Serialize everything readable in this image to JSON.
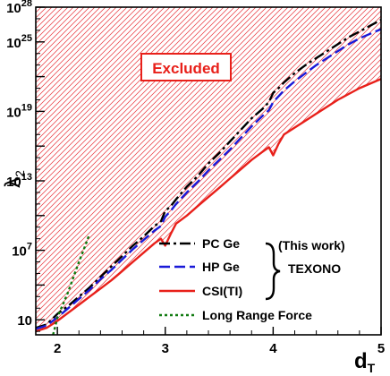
{
  "chart_data": {
    "type": "line",
    "title": "",
    "xlabel": "d",
    "xlabel_sub": "T",
    "ylabel": "λ",
    "ylabel_sub": "2",
    "xlim": [
      1.8,
      5.0
    ],
    "ylim_log10": [
      -0.3,
      28
    ],
    "y_scale": "log",
    "x_ticks": [
      {
        "value": 2,
        "label": "2"
      },
      {
        "value": 3,
        "label": "3"
      },
      {
        "value": 4,
        "label": "4"
      },
      {
        "value": 5,
        "label": "5"
      }
    ],
    "y_ticks": [
      {
        "exp": 1,
        "base": "10",
        "sup": ""
      },
      {
        "exp": 7,
        "base": "10",
        "sup": "7"
      },
      {
        "exp": 13,
        "base": "10",
        "sup": "13"
      },
      {
        "exp": 19,
        "base": "10",
        "sup": "19"
      },
      {
        "exp": 25,
        "base": "10",
        "sup": "25"
      },
      {
        "exp": 28,
        "base": "10",
        "sup": "28"
      }
    ],
    "excluded_label": "Excluded",
    "excluded_color": "#e8333a",
    "series": [
      {
        "name": "PC Ge",
        "color": "#000000",
        "dash": "dashdot",
        "x": [
          1.8,
          1.9,
          2.0,
          2.1,
          2.2,
          2.3,
          2.4,
          2.5,
          2.6,
          2.7,
          2.8,
          2.9,
          2.96,
          3.0,
          3.05,
          3.1,
          3.2,
          3.3,
          3.4,
          3.5,
          3.6,
          3.7,
          3.8,
          3.9,
          3.96,
          4.0,
          4.05,
          4.1,
          4.2,
          4.3,
          4.4,
          4.5,
          4.6,
          4.7,
          4.8,
          4.9,
          5.0
        ],
        "y_log10": [
          0.3,
          0.6,
          1.5,
          2.2,
          3.0,
          3.8,
          4.7,
          5.6,
          6.5,
          7.4,
          8.2,
          9.1,
          9.5,
          10.4,
          10.8,
          11.4,
          12.5,
          13.4,
          14.5,
          15.4,
          16.4,
          17.4,
          18.4,
          19.2,
          19.8,
          20.6,
          21.0,
          21.5,
          22.3,
          23.0,
          23.6,
          24.2,
          24.8,
          25.4,
          25.9,
          26.4,
          26.9
        ]
      },
      {
        "name": "HP Ge",
        "color": "#1a1ad8",
        "dash": "dash",
        "x": [
          1.8,
          1.9,
          2.0,
          2.1,
          2.2,
          2.3,
          2.4,
          2.5,
          2.6,
          2.7,
          2.8,
          2.9,
          2.96,
          3.0,
          3.05,
          3.1,
          3.2,
          3.3,
          3.4,
          3.5,
          3.6,
          3.7,
          3.8,
          3.9,
          3.96,
          4.0,
          4.05,
          4.1,
          4.2,
          4.3,
          4.4,
          4.5,
          4.6,
          4.7,
          4.8,
          4.9,
          5.0
        ],
        "y_log10": [
          0.2,
          0.5,
          1.2,
          2.0,
          2.8,
          3.6,
          4.5,
          5.3,
          6.2,
          7.1,
          7.9,
          8.7,
          9.1,
          9.9,
          10.4,
          11.0,
          12.0,
          12.9,
          13.9,
          14.8,
          15.7,
          16.7,
          17.7,
          18.6,
          19.1,
          19.8,
          20.3,
          20.8,
          21.6,
          22.3,
          23.0,
          23.6,
          24.2,
          24.8,
          25.3,
          25.7,
          26.1
        ]
      },
      {
        "name": "CSI(TI)",
        "color": "#e8201a",
        "dash": "solid",
        "x": [
          1.8,
          1.9,
          2.0,
          2.1,
          2.2,
          2.3,
          2.4,
          2.5,
          2.6,
          2.7,
          2.8,
          2.9,
          2.96,
          3.0,
          3.05,
          3.1,
          3.2,
          3.3,
          3.4,
          3.5,
          3.6,
          3.7,
          3.8,
          3.9,
          3.96,
          4.0,
          4.05,
          4.1,
          4.2,
          4.3,
          4.4,
          4.5,
          4.6,
          4.7,
          4.8,
          4.9,
          5.0
        ],
        "y_log10": [
          0.0,
          0.3,
          0.9,
          1.6,
          2.3,
          3.0,
          3.7,
          4.4,
          5.2,
          6.0,
          6.8,
          7.6,
          8.0,
          7.4,
          8.4,
          9.3,
          10.0,
          10.8,
          11.6,
          12.4,
          13.2,
          14.0,
          14.8,
          15.5,
          15.9,
          15.2,
          16.2,
          17.0,
          17.6,
          18.2,
          18.8,
          19.4,
          20.0,
          20.5,
          21.0,
          21.4,
          21.8
        ]
      },
      {
        "name": "Long Range Force",
        "color": "#107a10",
        "dash": "dot",
        "x": [
          1.96,
          1.98,
          2.0,
          2.05,
          2.1,
          2.15,
          2.2,
          2.25,
          2.29
        ],
        "y_log10": [
          -0.3,
          0.4,
          1.2,
          2.3,
          3.4,
          4.7,
          6.0,
          7.2,
          8.2
        ]
      }
    ],
    "legend": {
      "position": "bottom-right",
      "bracket_labels": [
        "(This work)",
        "TEXONO"
      ]
    },
    "grid": false
  }
}
